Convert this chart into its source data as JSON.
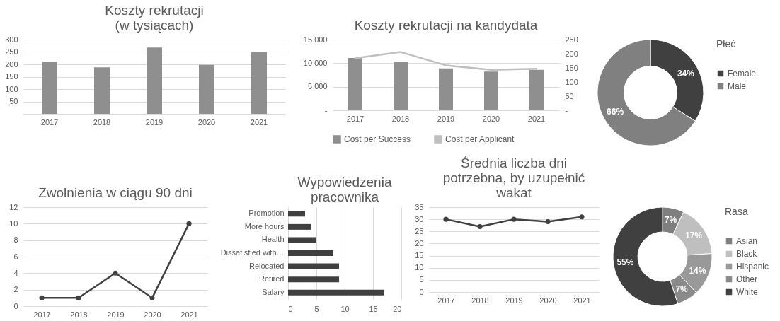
{
  "chart_data": [
    {
      "type": "bar",
      "title": "Koszty rekrutacji (w tysiącach)",
      "categories": [
        "2017",
        "2018",
        "2019",
        "2020",
        "2021"
      ],
      "values": [
        210,
        188,
        268,
        198,
        250
      ],
      "color": "#8f8f8f",
      "ylim": [
        0,
        300
      ],
      "yticks": [
        {
          "value": 0,
          "label": null
        },
        50,
        100,
        150,
        200,
        250,
        300
      ],
      "grid": "y"
    },
    {
      "type": "bar",
      "title": "Koszty rekrutacji na kandydata",
      "categories": [
        "2017",
        "2018",
        "2019",
        "2020",
        "2021"
      ],
      "series": [
        {
          "name": "Cost per Success",
          "type": "bar",
          "color": "#8f8f8f",
          "values": [
            11100,
            10300,
            8900,
            8200,
            8600
          ]
        },
        {
          "name": "Cost per Applicant",
          "type": "line",
          "axis": "y2",
          "color": "#bfbfbf",
          "values": [
            184,
            206,
            159,
            143,
            147
          ]
        }
      ],
      "ylim": [
        0,
        15000
      ],
      "yticks": [
        {
          "value": 0,
          "label": "-"
        },
        {
          "value": 5000,
          "label": "5 000"
        },
        {
          "value": 10000,
          "label": "10 000"
        },
        {
          "value": 15000,
          "label": "15 000"
        }
      ],
      "y2lim": [
        0,
        250
      ],
      "y2ticks": [
        {
          "value": 0,
          "label": "-"
        },
        50,
        100,
        150,
        200,
        250
      ],
      "grid": "y",
      "legend": "bottom"
    },
    {
      "type": "donut",
      "title": "Płeć",
      "categories": [
        "Female",
        "Male"
      ],
      "values": [
        34,
        66
      ],
      "colors": [
        "#404040",
        "#808080"
      ],
      "value_labels": [
        "34%",
        "66%"
      ],
      "legend": "right"
    },
    {
      "type": "line",
      "title": "Zwolnienia w ciągu 90 dni",
      "categories": [
        "2017",
        "2018",
        "2019",
        "2020",
        "2021"
      ],
      "values": [
        1,
        1,
        4,
        1,
        10
      ],
      "color": "#404040",
      "ylim": [
        0,
        12
      ],
      "yticks": [
        0,
        2,
        4,
        6,
        8,
        10,
        12
      ],
      "grid": "y",
      "marker": "circle",
      "line_style": "solid"
    },
    {
      "type": "bar",
      "orientation": "horizontal",
      "title": "Wypowiedzenia pracownika",
      "categories": [
        "Promotion",
        "More hours",
        "Health",
        "Dissatisfied with…",
        "Relocated",
        "Retired",
        "Salary"
      ],
      "values": [
        3,
        4,
        5,
        8,
        9,
        9,
        17
      ],
      "color": "#404040",
      "xlim": [
        0,
        20
      ],
      "xticks": [
        0,
        5,
        10,
        15,
        20
      ],
      "grid": "x"
    },
    {
      "type": "line",
      "title": "Średnia liczba dni potrzebna, by uzupełnić wakat",
      "categories": [
        "2017",
        "2018",
        "2019",
        "2020",
        "2021"
      ],
      "values": [
        30,
        27,
        30,
        29,
        31
      ],
      "color": "#404040",
      "ylim": [
        0,
        35
      ],
      "yticks": [
        0,
        5,
        10,
        15,
        20,
        25,
        30,
        35
      ],
      "grid": "y",
      "marker": "circle",
      "line_style": "solid"
    },
    {
      "type": "donut",
      "title": "Rasa",
      "categories": [
        "Asian",
        "Black",
        "Hispanic",
        "Other",
        "White"
      ],
      "values": [
        7,
        17,
        14,
        7,
        55
      ],
      "colors": [
        "#7f7f7f",
        "#bfbfbf",
        "#999999",
        "#8a8a8a",
        "#404040"
      ],
      "value_labels": [
        "7%",
        "17%",
        "14%",
        "7%",
        "55%"
      ],
      "legend": "right"
    }
  ]
}
